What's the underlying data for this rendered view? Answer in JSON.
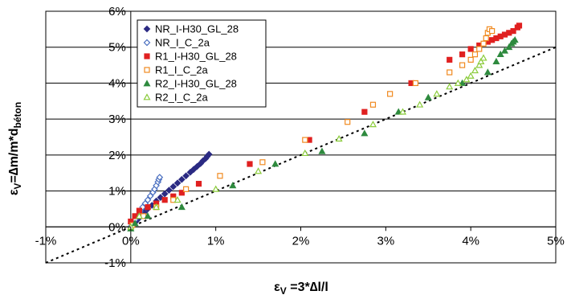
{
  "chart_data": {
    "type": "scatter",
    "title": "",
    "xlabel": {
      "main": "ε",
      "sub": "V",
      "rest": " =3*∆l/l"
    },
    "ylabel": {
      "main": "ε",
      "sub": "V",
      "mid": "=∆m/m*d",
      "sub2": "béton"
    },
    "xlim": [
      -1,
      5
    ],
    "ylim": [
      -1,
      6
    ],
    "xticks": [
      -1,
      0,
      1,
      2,
      3,
      4,
      5
    ],
    "yticks": [
      -1,
      0,
      1,
      2,
      3,
      4,
      5,
      6
    ],
    "xtick_labels": [
      "-1%",
      "0%",
      "1%",
      "2%",
      "3%",
      "4%",
      "5%"
    ],
    "ytick_labels": [
      "-1%",
      "0%",
      "1%",
      "2%",
      "3%",
      "4%",
      "5%",
      "6%"
    ],
    "grid": "horizontal",
    "legend_position": "top-left",
    "reference_line": {
      "style": "dotted",
      "color": "#000000",
      "x": [
        -1,
        5
      ],
      "y": [
        -1,
        5
      ]
    },
    "series": [
      {
        "name": "NR_I-H30_GL_28",
        "marker": "diamond",
        "filled": true,
        "color": "#2b2a83",
        "x": [
          0.0,
          0.02,
          0.05,
          0.08,
          0.12,
          0.16,
          0.2,
          0.25,
          0.3,
          0.35,
          0.4,
          0.45,
          0.5,
          0.55,
          0.6,
          0.65,
          0.7,
          0.74,
          0.78,
          0.82,
          0.85,
          0.88,
          0.9,
          0.92
        ],
        "y": [
          0.0,
          0.05,
          0.12,
          0.2,
          0.3,
          0.4,
          0.5,
          0.6,
          0.72,
          0.82,
          0.92,
          1.02,
          1.12,
          1.22,
          1.32,
          1.42,
          1.52,
          1.6,
          1.68,
          1.76,
          1.84,
          1.9,
          1.96,
          2.02
        ]
      },
      {
        "name": "NR_I_C_2a",
        "marker": "diamond",
        "filled": false,
        "color": "#4a6fc0",
        "x": [
          0.0,
          0.02,
          0.05,
          0.08,
          0.11,
          0.14,
          0.17,
          0.2,
          0.23,
          0.26,
          0.28,
          0.3,
          0.32,
          0.33,
          0.34
        ],
        "y": [
          0.0,
          0.1,
          0.2,
          0.3,
          0.42,
          0.55,
          0.65,
          0.75,
          0.86,
          0.96,
          1.05,
          1.15,
          1.25,
          1.32,
          1.38
        ]
      },
      {
        "name": "R1_I-H30_GL_28",
        "marker": "square",
        "filled": true,
        "color": "#e02020",
        "x": [
          0.0,
          0.05,
          0.1,
          0.2,
          0.3,
          0.4,
          0.5,
          0.6,
          0.8,
          1.4,
          2.1,
          2.75,
          3.3,
          3.75,
          3.9,
          4.0,
          4.1,
          4.2,
          4.25,
          4.3,
          4.35,
          4.4,
          4.45,
          4.5,
          4.55,
          4.57
        ],
        "y": [
          0.15,
          0.3,
          0.45,
          0.55,
          0.65,
          0.75,
          0.85,
          0.95,
          1.2,
          1.75,
          2.42,
          3.2,
          4.0,
          4.65,
          4.8,
          4.95,
          5.05,
          5.15,
          5.2,
          5.25,
          5.3,
          5.35,
          5.4,
          5.45,
          5.55,
          5.6
        ]
      },
      {
        "name": "R1_I_C_2a",
        "marker": "square",
        "filled": false,
        "color": "#f08a20",
        "x": [
          0.02,
          0.15,
          0.3,
          0.5,
          0.65,
          1.05,
          1.55,
          2.05,
          2.55,
          2.85,
          3.05,
          3.35,
          3.75,
          3.9,
          4.0,
          4.05,
          4.1,
          4.15,
          4.18,
          4.2,
          4.22,
          4.25
        ],
        "y": [
          0.05,
          0.3,
          0.55,
          0.75,
          1.05,
          1.42,
          1.8,
          2.42,
          2.92,
          3.4,
          3.7,
          4.0,
          4.3,
          4.5,
          4.65,
          4.8,
          4.95,
          5.1,
          5.25,
          5.4,
          5.5,
          5.45
        ]
      },
      {
        "name": "R2_I-H30_GL_28",
        "marker": "triangle",
        "filled": true,
        "color": "#2e8a3e",
        "x": [
          0.0,
          0.05,
          0.2,
          0.6,
          1.2,
          1.7,
          2.25,
          2.75,
          3.15,
          3.5,
          3.9,
          4.2,
          4.3,
          4.35,
          4.4,
          4.45,
          4.48,
          4.5,
          4.52
        ],
        "y": [
          -0.05,
          0.1,
          0.3,
          0.55,
          1.15,
          1.75,
          2.1,
          2.6,
          3.2,
          3.6,
          4.0,
          4.3,
          4.6,
          4.8,
          4.9,
          5.0,
          5.1,
          5.15,
          5.2
        ]
      },
      {
        "name": "R2_I_C_2a",
        "marker": "triangle",
        "filled": false,
        "color": "#8acb3a",
        "x": [
          0.0,
          0.1,
          0.3,
          0.55,
          1.0,
          1.5,
          2.05,
          2.45,
          2.85,
          3.2,
          3.4,
          3.6,
          3.75,
          3.85,
          3.95,
          4.0,
          4.05,
          4.1,
          4.12,
          4.15
        ],
        "y": [
          0.0,
          0.3,
          0.55,
          0.75,
          1.05,
          1.55,
          2.05,
          2.45,
          2.85,
          3.2,
          3.4,
          3.7,
          3.9,
          4.0,
          4.1,
          4.2,
          4.35,
          4.5,
          4.6,
          4.7
        ]
      }
    ]
  }
}
